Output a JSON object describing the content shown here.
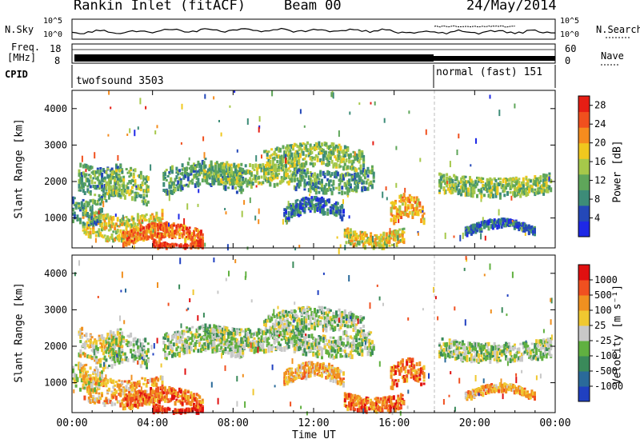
{
  "header": {
    "station": "Rankin Inlet (fitACF)",
    "beam": "Beam 00",
    "date": "24/May/2014"
  },
  "panels": {
    "nsky": {
      "left_label": "N.Sky",
      "left_ticks": [
        "10^5",
        "10^0"
      ],
      "right_label": "N.Search",
      "right_ticks": [
        "10^5",
        "10^0"
      ]
    },
    "freq": {
      "left_label_line1": "Freq.",
      "left_label_line2": "[MHz]",
      "left_ticks": [
        "18",
        "8"
      ],
      "right_label": "Nave",
      "right_ticks": [
        "60",
        "0"
      ]
    },
    "cpid": {
      "label": "CPID",
      "mode1": "twofsound 3503",
      "mode2": "normal (fast) 151"
    }
  },
  "colors": {
    "power": [
      "#1e28e6",
      "#2448b8",
      "#3d8c78",
      "#5fa65a",
      "#a6c84a",
      "#f0c81e",
      "#f58c1e",
      "#f0501e",
      "#e61e14"
    ],
    "velocity": [
      "#2040c0",
      "#2a6a9a",
      "#3a8a5a",
      "#60b040",
      "#c8c8c8",
      "#f0c830",
      "#f09020",
      "#f05020",
      "#e01010"
    ]
  },
  "chart_data": [
    {
      "type": "heatmap",
      "name": "power",
      "ylabel": "Slant Range [km]",
      "y_ticks": [
        "1000",
        "2000",
        "3000",
        "4000"
      ],
      "ylim": [
        180,
        4500
      ],
      "x_ticks": [
        "00:00",
        "04:00",
        "08:00",
        "12:00",
        "16:00",
        "20:00",
        "00:00"
      ],
      "colorbar": {
        "label": "Power [dB]",
        "ticks": [
          "4",
          "8",
          "12",
          "16",
          "20",
          "24",
          "28"
        ],
        "range": [
          0,
          30
        ]
      }
    },
    {
      "type": "heatmap",
      "name": "velocity",
      "ylabel": "Slant Range [km]",
      "y_ticks": [
        "1000",
        "2000",
        "3000",
        "4000"
      ],
      "ylim": [
        180,
        4500
      ],
      "x_ticks": [
        "00:00",
        "04:00",
        "08:00",
        "12:00",
        "16:00",
        "20:00",
        "00:00"
      ],
      "xlabel": "Time UT",
      "colorbar": {
        "label": "Velocity [m s⁻¹]",
        "ticks": [
          "1000",
          "500",
          "100",
          "25",
          "-25",
          "-100",
          "-500",
          "-1000"
        ],
        "range": [
          -1000,
          1000
        ]
      }
    }
  ]
}
